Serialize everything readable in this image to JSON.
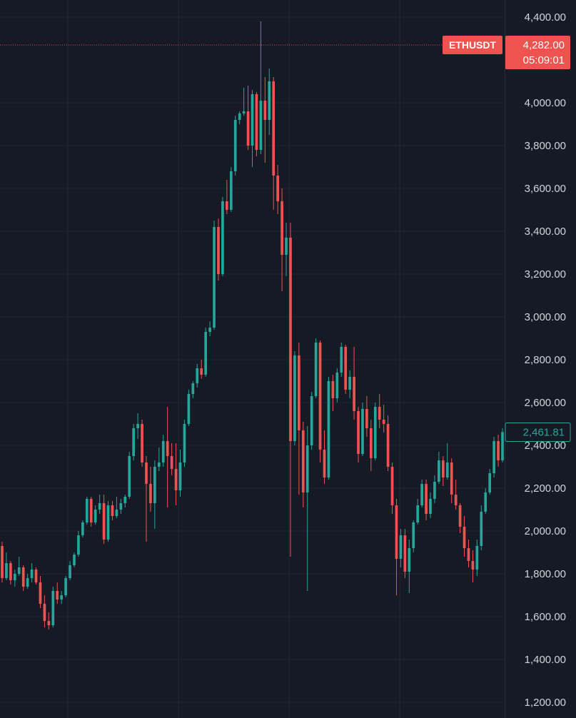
{
  "chart_data": {
    "type": "candlestick",
    "symbol": "ETHUSDT",
    "last_price_label": "4,282.00",
    "countdown": "05:09:01",
    "current_price_label": "2,461.81",
    "last_price": 4282,
    "current_price": 2461.81,
    "ylim": [
      1150,
      4450
    ],
    "y_ticks": [
      {
        "value": 4400,
        "label": "4,400.00"
      },
      {
        "value": 4000,
        "label": "4,000.00"
      },
      {
        "value": 3800,
        "label": "3,800.00"
      },
      {
        "value": 3600,
        "label": "3,600.00"
      },
      {
        "value": 3400,
        "label": "3,400.00"
      },
      {
        "value": 3200,
        "label": "3,200.00"
      },
      {
        "value": 3000,
        "label": "3,000.00"
      },
      {
        "value": 2800,
        "label": "2,800.00"
      },
      {
        "value": 2600,
        "label": "2,600.00"
      },
      {
        "value": 2400,
        "label": "2,400.00"
      },
      {
        "value": 2200,
        "label": "2,200.00"
      },
      {
        "value": 2000,
        "label": "2,000.00"
      },
      {
        "value": 1800,
        "label": "1,800.00"
      },
      {
        "value": 1600,
        "label": "1,600.00"
      },
      {
        "value": 1400,
        "label": "1,400.00"
      },
      {
        "value": 1200,
        "label": "1,200.00"
      }
    ],
    "grid": true,
    "up_color": "#26a69a",
    "down_color": "#ef5350",
    "ohlc": [
      [
        1930,
        1950,
        1760,
        1780
      ],
      [
        1780,
        1900,
        1770,
        1850
      ],
      [
        1850,
        1860,
        1750,
        1770
      ],
      [
        1770,
        1820,
        1740,
        1800
      ],
      [
        1800,
        1880,
        1790,
        1830
      ],
      [
        1830,
        1840,
        1720,
        1740
      ],
      [
        1740,
        1800,
        1730,
        1780
      ],
      [
        1780,
        1850,
        1760,
        1820
      ],
      [
        1820,
        1830,
        1750,
        1760
      ],
      [
        1760,
        1790,
        1640,
        1660
      ],
      [
        1660,
        1700,
        1550,
        1580
      ],
      [
        1580,
        1620,
        1540,
        1560
      ],
      [
        1560,
        1740,
        1550,
        1720
      ],
      [
        1720,
        1760,
        1660,
        1680
      ],
      [
        1680,
        1720,
        1660,
        1700
      ],
      [
        1700,
        1790,
        1690,
        1780
      ],
      [
        1780,
        1860,
        1770,
        1840
      ],
      [
        1840,
        1900,
        1830,
        1890
      ],
      [
        1890,
        2000,
        1880,
        1980
      ],
      [
        1980,
        2050,
        1970,
        2040
      ],
      [
        2040,
        2160,
        2030,
        2150
      ],
      [
        2150,
        2160,
        2020,
        2040
      ],
      [
        2040,
        2120,
        2030,
        2100
      ],
      [
        2100,
        2170,
        2080,
        2130
      ],
      [
        2130,
        2170,
        1940,
        1960
      ],
      [
        1960,
        2140,
        1950,
        2120
      ],
      [
        2120,
        2140,
        2050,
        2070
      ],
      [
        2070,
        2160,
        2060,
        2100
      ],
      [
        2100,
        2150,
        2080,
        2130
      ],
      [
        2130,
        2170,
        2110,
        2160
      ],
      [
        2160,
        2370,
        2150,
        2350
      ],
      [
        2350,
        2500,
        2330,
        2480
      ],
      [
        2480,
        2550,
        2430,
        2500
      ],
      [
        2500,
        2520,
        2300,
        2320
      ],
      [
        2320,
        2350,
        1950,
        2220
      ],
      [
        2220,
        2300,
        2090,
        2130
      ],
      [
        2130,
        2330,
        2010,
        2300
      ],
      [
        2300,
        2390,
        2280,
        2320
      ],
      [
        2320,
        2450,
        2300,
        2420
      ],
      [
        2420,
        2580,
        2110,
        2350
      ],
      [
        2350,
        2410,
        2260,
        2290
      ],
      [
        2290,
        2410,
        2120,
        2190
      ],
      [
        2190,
        2380,
        2160,
        2320
      ],
      [
        2320,
        2520,
        2300,
        2500
      ],
      [
        2500,
        2660,
        2490,
        2640
      ],
      [
        2640,
        2700,
        2620,
        2690
      ],
      [
        2690,
        2780,
        2670,
        2760
      ],
      [
        2760,
        2800,
        2710,
        2730
      ],
      [
        2730,
        2950,
        2720,
        2930
      ],
      [
        2930,
        2980,
        2910,
        2950
      ],
      [
        2950,
        3450,
        2940,
        3420
      ],
      [
        3420,
        3460,
        3170,
        3200
      ],
      [
        3200,
        3560,
        3190,
        3540
      ],
      [
        3540,
        3640,
        3480,
        3500
      ],
      [
        3500,
        3700,
        3490,
        3680
      ],
      [
        3680,
        3940,
        3660,
        3920
      ],
      [
        3920,
        3960,
        3900,
        3950
      ],
      [
        3950,
        4070,
        3940,
        3960
      ],
      [
        3960,
        4080,
        3780,
        3800
      ],
      [
        3800,
        4060,
        3700,
        4040
      ],
      [
        4040,
        4050,
        3750,
        3780
      ],
      [
        3780,
        4380,
        3760,
        4010
      ],
      [
        4010,
        4120,
        3720,
        3920
      ],
      [
        3920,
        4160,
        3850,
        4100
      ],
      [
        4100,
        4120,
        3500,
        3660
      ],
      [
        3660,
        3710,
        3480,
        3540
      ],
      [
        3540,
        3600,
        3120,
        3290
      ],
      [
        3290,
        3440,
        3190,
        3370
      ],
      [
        3370,
        3440,
        1880,
        2420
      ],
      [
        2420,
        2840,
        2400,
        2820
      ],
      [
        2820,
        2880,
        2170,
        2470
      ],
      [
        2470,
        2510,
        2110,
        2180
      ],
      [
        2180,
        2490,
        1720,
        2400
      ],
      [
        2400,
        2650,
        2380,
        2630
      ],
      [
        2630,
        2900,
        2620,
        2880
      ],
      [
        2880,
        2890,
        2320,
        2380
      ],
      [
        2380,
        2470,
        2220,
        2250
      ],
      [
        2250,
        2720,
        2240,
        2700
      ],
      [
        2700,
        2730,
        2560,
        2620
      ],
      [
        2620,
        2760,
        2600,
        2740
      ],
      [
        2740,
        2880,
        2720,
        2860
      ],
      [
        2860,
        2870,
        2640,
        2660
      ],
      [
        2660,
        2750,
        2620,
        2720
      ],
      [
        2720,
        2860,
        2520,
        2560
      ],
      [
        2560,
        2580,
        2320,
        2360
      ],
      [
        2360,
        2600,
        2350,
        2570
      ],
      [
        2570,
        2630,
        2440,
        2480
      ],
      [
        2480,
        2520,
        2280,
        2340
      ],
      [
        2340,
        2600,
        2330,
        2580
      ],
      [
        2580,
        2640,
        2480,
        2520
      ],
      [
        2520,
        2590,
        2460,
        2500
      ],
      [
        2500,
        2540,
        2280,
        2300
      ],
      [
        2300,
        2320,
        2080,
        2120
      ],
      [
        2120,
        2150,
        1700,
        1870
      ],
      [
        1870,
        2010,
        1830,
        1980
      ],
      [
        1980,
        2010,
        1780,
        1810
      ],
      [
        1810,
        1960,
        1710,
        1920
      ],
      [
        1920,
        2050,
        1900,
        2040
      ],
      [
        2040,
        2150,
        2030,
        2120
      ],
      [
        2120,
        2240,
        2110,
        2220
      ],
      [
        2220,
        2240,
        2050,
        2080
      ],
      [
        2080,
        2180,
        2060,
        2150
      ],
      [
        2150,
        2260,
        2130,
        2230
      ],
      [
        2230,
        2370,
        2220,
        2330
      ],
      [
        2330,
        2350,
        2210,
        2250
      ],
      [
        2250,
        2410,
        2240,
        2320
      ],
      [
        2320,
        2340,
        2130,
        2170
      ],
      [
        2170,
        2240,
        2100,
        2120
      ],
      [
        2120,
        2130,
        1990,
        2020
      ],
      [
        2020,
        2070,
        1880,
        1920
      ],
      [
        1920,
        1960,
        1830,
        1860
      ],
      [
        1860,
        1910,
        1760,
        1820
      ],
      [
        1820,
        1960,
        1790,
        1930
      ],
      [
        1930,
        2120,
        1910,
        2090
      ],
      [
        2090,
        2200,
        2080,
        2180
      ],
      [
        2180,
        2290,
        2170,
        2270
      ],
      [
        2270,
        2440,
        2250,
        2420
      ],
      [
        2420,
        2450,
        2300,
        2330
      ],
      [
        2330,
        2480,
        2320,
        2461.81
      ]
    ]
  }
}
